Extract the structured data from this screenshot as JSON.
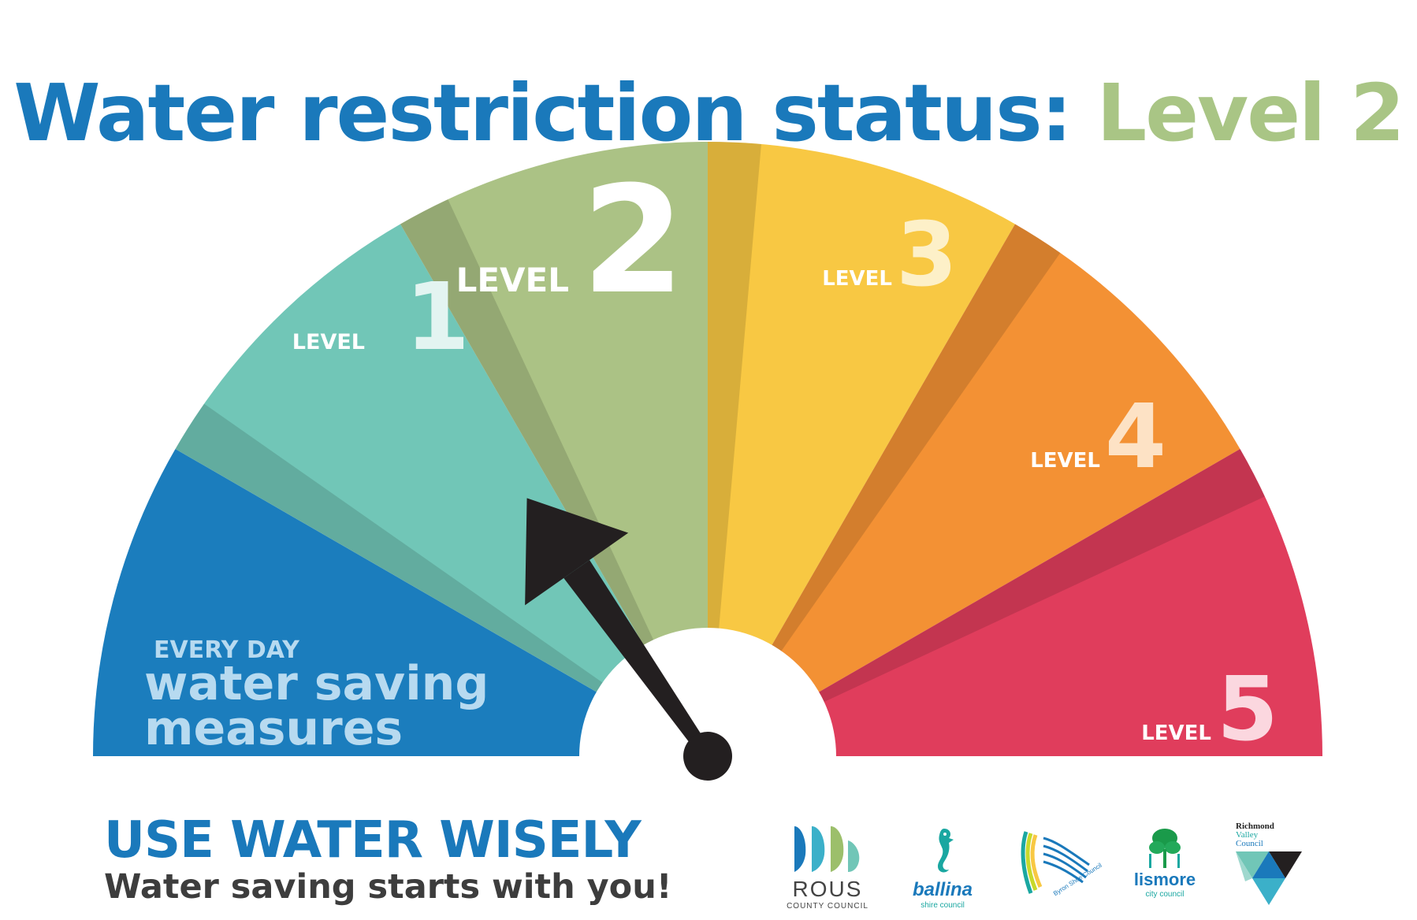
{
  "title": {
    "main": "Water restriction status:",
    "level": "Level 2"
  },
  "gauge": {
    "current_level": 2,
    "segments": [
      {
        "id": "everyday",
        "kicker": "EVERY DAY",
        "line1": "water saving",
        "line2": "measures",
        "color": "#1b7dbd"
      },
      {
        "id": "level-1",
        "word": "LEVEL",
        "num": "1",
        "color": "#71c6b7"
      },
      {
        "id": "level-2",
        "word": "LEVEL",
        "num": "2",
        "color": "#abc285"
      },
      {
        "id": "level-3",
        "word": "LEVEL",
        "num": "3",
        "color": "#f8c843"
      },
      {
        "id": "level-4",
        "word": "LEVEL",
        "num": "4",
        "color": "#f39134"
      },
      {
        "id": "level-5",
        "word": "LEVEL",
        "num": "5",
        "color": "#e03d5c"
      }
    ]
  },
  "footer": {
    "slogan": "USE WATER WISELY",
    "tagline": "Water saving starts with you!"
  },
  "logos": {
    "rous": {
      "name": "ROUS",
      "sub": "COUNTY COUNCIL"
    },
    "ballina": {
      "name": "ballina",
      "sub": "shire council"
    },
    "byron": {
      "name": "Byron Shire Council"
    },
    "lismore": {
      "name": "lismore",
      "sub": "city council"
    },
    "richmond": {
      "line1": "Richmond",
      "line2": "Valley",
      "line3": "Council"
    }
  },
  "colors": {
    "brand_blue": "#1a79bb",
    "level2_green": "#a9c585",
    "needle": "#231f20",
    "tagline_grey": "#3d3d3d"
  }
}
